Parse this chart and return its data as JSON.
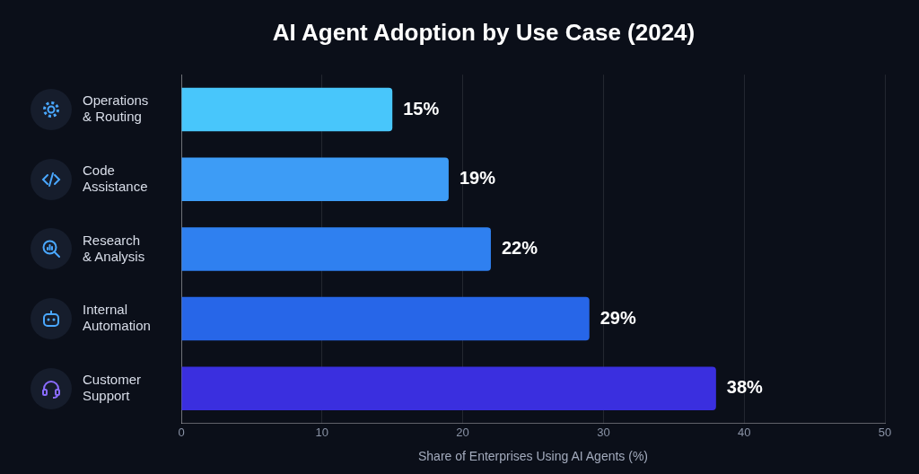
{
  "chart_data": {
    "type": "bar",
    "orientation": "horizontal",
    "title": "AI Agent Adoption by Use Case (2024)",
    "xlabel": "Share of Enterprises Using AI Agents (%)",
    "categories": [
      "Operations & Routing",
      "Code Assistance",
      "Research & Analysis",
      "Internal Automation",
      "Customer Support"
    ],
    "values": [
      15,
      19,
      22,
      29,
      38
    ],
    "colors": [
      "#48c6fb",
      "#3d9cf6",
      "#2f80f0",
      "#2766e8",
      "#3a2fdf"
    ],
    "value_labels": [
      "15%",
      "19%",
      "22%",
      "29%",
      "38%"
    ],
    "xlim": [
      0,
      50
    ],
    "xticks": [
      0,
      10,
      20,
      30,
      40,
      50
    ],
    "grid": "x",
    "legend": false
  }
}
